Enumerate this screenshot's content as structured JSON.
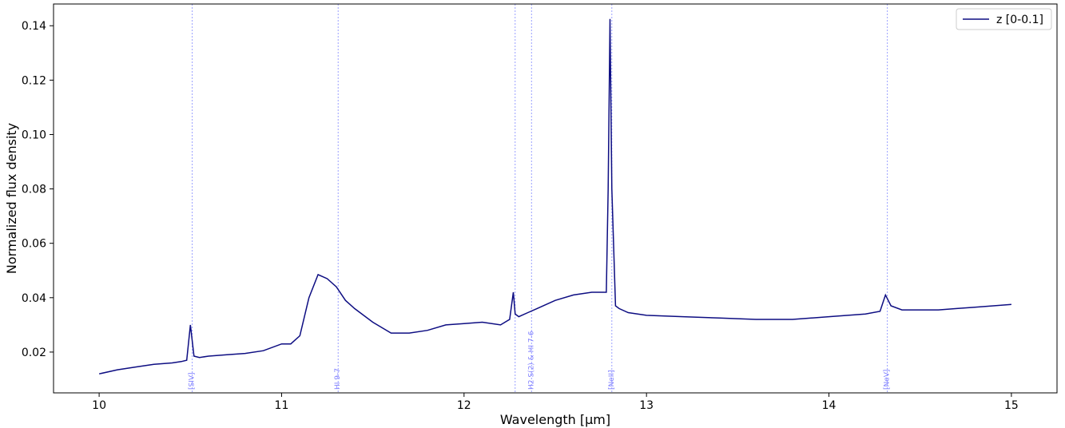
{
  "chart_data": {
    "type": "line",
    "xlabel": "Wavelength [μm]",
    "ylabel": "Normalized flux density",
    "xlim": [
      9.75,
      15.25
    ],
    "ylim": [
      0.005,
      0.148
    ],
    "xticks": [
      10,
      11,
      12,
      13,
      14,
      15
    ],
    "yticks": [
      0.02,
      0.04,
      0.06,
      0.08,
      0.1,
      0.12,
      0.14
    ],
    "ytick_labels": [
      "0.02",
      "0.04",
      "0.06",
      "0.08",
      "0.10",
      "0.12",
      "0.14"
    ],
    "grid": false,
    "legend_position": "top-right",
    "line_color": "#0d0d82",
    "marker_line_color": "#9aa0ff",
    "series": [
      {
        "name": "z [0-0.1]",
        "x": [
          10.0,
          10.1,
          10.2,
          10.3,
          10.4,
          10.45,
          10.48,
          10.5,
          10.52,
          10.55,
          10.6,
          10.7,
          10.8,
          10.9,
          11.0,
          11.05,
          11.1,
          11.15,
          11.2,
          11.25,
          11.3,
          11.35,
          11.4,
          11.5,
          11.6,
          11.7,
          11.8,
          11.9,
          12.0,
          12.1,
          12.2,
          12.25,
          12.27,
          12.28,
          12.3,
          12.35,
          12.4,
          12.5,
          12.6,
          12.7,
          12.78,
          12.79,
          12.8,
          12.81,
          12.83,
          12.85,
          12.9,
          13.0,
          13.2,
          13.4,
          13.6,
          13.8,
          14.0,
          14.2,
          14.28,
          14.31,
          14.34,
          14.4,
          14.5,
          14.6,
          14.7,
          14.8,
          14.9,
          15.0
        ],
        "y": [
          0.012,
          0.0135,
          0.0145,
          0.0155,
          0.016,
          0.0165,
          0.017,
          0.03,
          0.0185,
          0.018,
          0.0185,
          0.019,
          0.0195,
          0.0205,
          0.023,
          0.023,
          0.026,
          0.04,
          0.0485,
          0.047,
          0.044,
          0.039,
          0.036,
          0.031,
          0.027,
          0.027,
          0.028,
          0.03,
          0.0305,
          0.031,
          0.03,
          0.032,
          0.042,
          0.034,
          0.033,
          0.0345,
          0.036,
          0.039,
          0.041,
          0.042,
          0.042,
          0.08,
          0.1425,
          0.08,
          0.037,
          0.036,
          0.0345,
          0.0335,
          0.033,
          0.0325,
          0.032,
          0.032,
          0.033,
          0.034,
          0.035,
          0.041,
          0.037,
          0.0355,
          0.0355,
          0.0355,
          0.036,
          0.0365,
          0.037,
          0.0375
        ]
      }
    ],
    "annotations": [
      {
        "label": "[SIV]",
        "x": 10.51
      },
      {
        "label": "HI 9-7",
        "x": 11.31
      },
      {
        "label": "",
        "x": 12.28
      },
      {
        "label": "H2 S(2) & HI 7-6",
        "x": 12.37
      },
      {
        "label": "[NeII]",
        "x": 12.81
      },
      {
        "label": "[NeV]",
        "x": 14.32
      }
    ]
  }
}
